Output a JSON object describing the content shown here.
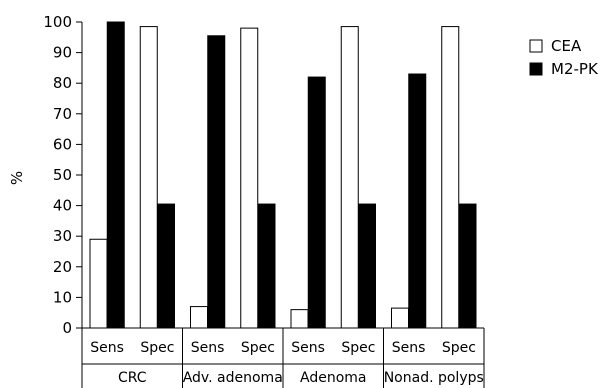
{
  "chart_data": {
    "type": "bar",
    "ylabel": "%",
    "xlabel": "",
    "title": "",
    "ylim": [
      0,
      100
    ],
    "yticks": [
      0,
      10,
      20,
      30,
      40,
      50,
      60,
      70,
      80,
      90,
      100
    ],
    "grid": false,
    "legend_position": "right",
    "groups": [
      {
        "label": "CRC",
        "metrics": [
          "Sens",
          "Spec"
        ]
      },
      {
        "label": "Adv. adenoma",
        "metrics": [
          "Sens",
          "Spec"
        ]
      },
      {
        "label": "Adenoma",
        "metrics": [
          "Sens",
          "Spec"
        ]
      },
      {
        "label": "Nonad. polyps",
        "metrics": [
          "Sens",
          "Spec"
        ]
      }
    ],
    "series": [
      {
        "name": "CEA",
        "color": "#ffffff",
        "values": [
          29,
          98.5,
          7,
          98,
          6,
          98.5,
          6.5,
          98.5
        ]
      },
      {
        "name": "M2-PK",
        "color": "#000000",
        "values": [
          100,
          40.5,
          95.5,
          40.5,
          82,
          40.5,
          83,
          40.5
        ]
      }
    ]
  }
}
